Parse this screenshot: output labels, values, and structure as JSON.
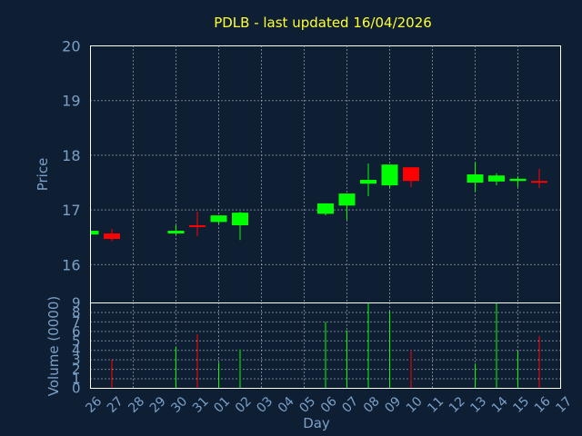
{
  "chart_data": {
    "type": "candlestick",
    "title": "PDLB - last updated 16/04/2026",
    "xlabel": "Day",
    "price_panel": {
      "ylabel": "Price",
      "ylim": [
        15.3,
        20
      ],
      "yticks": [
        "16",
        "17",
        "18",
        "19",
        "20"
      ],
      "grid": true
    },
    "volume_panel": {
      "ylabel": "Volume (0000)",
      "ylim": [
        0,
        9
      ],
      "yticks": [
        "0",
        "1",
        "2",
        "3",
        "4",
        "5",
        "6",
        "7",
        "8",
        "9"
      ],
      "grid": true
    },
    "x_ticks": [
      "26",
      "27",
      "28",
      "29",
      "30",
      "31",
      "01",
      "02",
      "03",
      "04",
      "05",
      "06",
      "07",
      "08",
      "09",
      "10",
      "11",
      "12",
      "13",
      "14",
      "15",
      "16",
      "17"
    ],
    "up_color": "#00ff00",
    "down_color": "#ff0000",
    "candles": [
      {
        "day": "26",
        "open": 16.55,
        "high": 16.62,
        "low": 16.53,
        "close": 16.62,
        "volume": 0
      },
      {
        "day": "27",
        "open": 16.57,
        "high": 16.65,
        "low": 16.43,
        "close": 16.47,
        "volume": 3.0
      },
      {
        "day": "30",
        "open": 16.57,
        "high": 16.72,
        "low": 16.55,
        "close": 16.62,
        "volume": 4.4
      },
      {
        "day": "31",
        "open": 16.72,
        "high": 16.97,
        "low": 16.52,
        "close": 16.7,
        "volume": 5.7
      },
      {
        "day": "01",
        "open": 16.78,
        "high": 16.9,
        "low": 16.75,
        "close": 16.9,
        "volume": 2.7
      },
      {
        "day": "02",
        "open": 16.72,
        "high": 16.97,
        "low": 16.45,
        "close": 16.95,
        "volume": 4.1
      },
      {
        "day": "06",
        "open": 16.93,
        "high": 17.12,
        "low": 16.9,
        "close": 17.12,
        "volume": 7.0
      },
      {
        "day": "07",
        "open": 17.08,
        "high": 17.3,
        "low": 16.82,
        "close": 17.3,
        "volume": 6.1
      },
      {
        "day": "08",
        "open": 17.48,
        "high": 17.85,
        "low": 17.25,
        "close": 17.55,
        "volume": 9.0
      },
      {
        "day": "09",
        "open": 17.45,
        "high": 17.83,
        "low": 17.4,
        "close": 17.83,
        "volume": 8.1
      },
      {
        "day": "10",
        "open": 17.78,
        "high": 17.78,
        "low": 17.42,
        "close": 17.53,
        "volume": 4.0
      },
      {
        "day": "13",
        "open": 17.5,
        "high": 17.88,
        "low": 17.33,
        "close": 17.65,
        "volume": 2.6
      },
      {
        "day": "14",
        "open": 17.52,
        "high": 17.67,
        "low": 17.45,
        "close": 17.63,
        "volume": 9.0
      },
      {
        "day": "15",
        "open": 17.53,
        "high": 17.62,
        "low": 17.42,
        "close": 17.57,
        "volume": 3.9
      },
      {
        "day": "16",
        "open": 17.53,
        "high": 17.75,
        "low": 17.4,
        "close": 17.5,
        "volume": 5.5
      }
    ]
  }
}
